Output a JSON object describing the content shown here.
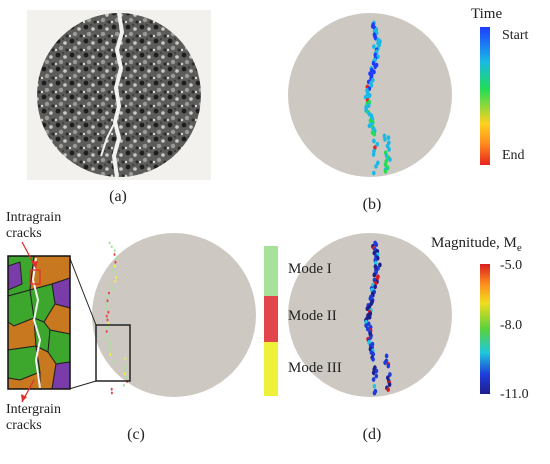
{
  "panels": {
    "a": {
      "label": "(a)"
    },
    "b": {
      "label": "(b)"
    },
    "c": {
      "label": "(c)"
    },
    "d": {
      "label": "(d)"
    }
  },
  "time_legend": {
    "title": "Time",
    "top": "Start",
    "bottom": "End",
    "gradient": [
      "#1e3cff",
      "#19b9e6",
      "#22dd55",
      "#ffd21e",
      "#ff8a1e",
      "#e8231e"
    ]
  },
  "mode_legend": {
    "items": [
      {
        "label": "Mode I",
        "color": "#a8e29a"
      },
      {
        "label": "Mode II",
        "color": "#e2464a"
      },
      {
        "label": "Mode III",
        "color": "#eef03c"
      }
    ]
  },
  "magnitude_legend": {
    "title": "Magnitude, M",
    "title_sub": "e",
    "ticks": [
      "-5.0",
      "-8.0",
      "-11.0"
    ],
    "gradient": [
      "#d91e1e",
      "#ff8c1e",
      "#f0dc1e",
      "#5ad23c",
      "#1ec8dc",
      "#1e3cdc",
      "#1e1e8c"
    ]
  },
  "inset": {
    "top_note": [
      "Intragrain",
      "cracks"
    ],
    "bottom_note": [
      "Intergrain",
      "cracks"
    ]
  },
  "colors": {
    "disk": "#cdc9c2",
    "grain_green": "#3da62c",
    "grain_orange": "#c8781e",
    "grain_purple": "#7a3ca8",
    "arrow": "#e03030"
  }
}
